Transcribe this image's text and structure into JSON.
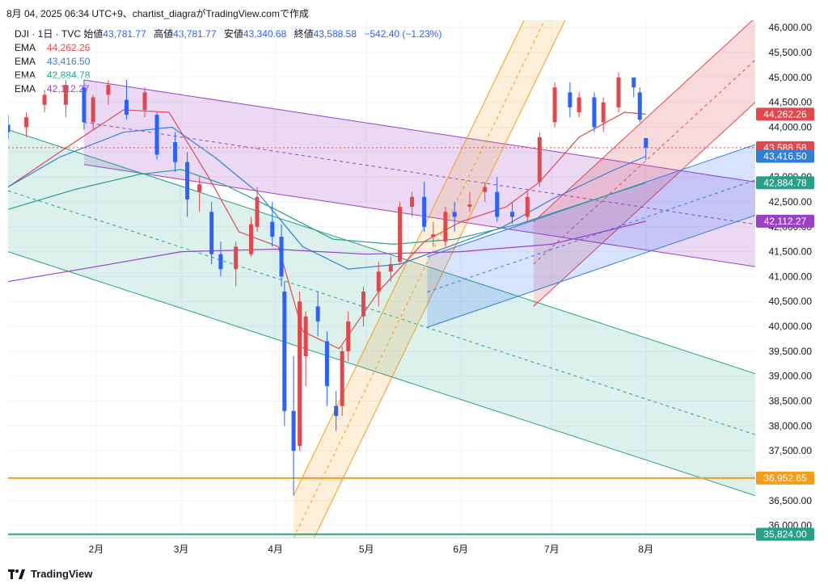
{
  "header": {
    "caption": "8月 04, 2025 06:34 UTC+9、chartist_diagraがTradingView.comで作成"
  },
  "legend": {
    "symbol": "DJI · 1日 · TVC",
    "open_label": "始値",
    "open": "43,781.77",
    "high_label": "高値",
    "high": "43,781.77",
    "low_label": "安値",
    "low": "43,340.68",
    "close_label": "終値",
    "close": "43,588.58",
    "change": "−542.40 (−1.23%)",
    "emas": [
      {
        "label": "EMA",
        "value": "44,262.26",
        "color": "#e0484e"
      },
      {
        "label": "EMA",
        "value": "43,416.50",
        "color": "#2f7fd8"
      },
      {
        "label": "EMA",
        "value": "42,884.78",
        "color": "#26a08a"
      },
      {
        "label": "EMA",
        "value": "42,112.27",
        "color": "#9c3fc7"
      }
    ]
  },
  "footer": {
    "brand": "TradingView"
  },
  "chart_data": {
    "type": "candlestick",
    "y_ticks": [
      "46,000.00",
      "45,500.00",
      "45,000.00",
      "44,500.00",
      "44,000.00",
      "43,500.00",
      "43,000.00",
      "42,500.00",
      "42,000.00",
      "41,500.00",
      "41,000.00",
      "40,500.00",
      "40,000.00",
      "39,500.00",
      "39,000.00",
      "38,500.00",
      "38,000.00",
      "37,500.00",
      "37,000.00",
      "36,500.00",
      "36,000.00"
    ],
    "y_tick_values": [
      46000,
      45500,
      45000,
      44500,
      44000,
      43500,
      43000,
      42500,
      42000,
      41500,
      41000,
      40500,
      40000,
      39500,
      39000,
      38500,
      38000,
      37500,
      37000,
      36500,
      36000
    ],
    "ylim": [
      35750,
      46150
    ],
    "x_ticks": [
      {
        "label": "2月",
        "date": "2025-02-01"
      },
      {
        "label": "3月",
        "date": "2025-03-01"
      },
      {
        "label": "4月",
        "date": "2025-04-01"
      },
      {
        "label": "5月",
        "date": "2025-05-01"
      },
      {
        "label": "6月",
        "date": "2025-06-01"
      },
      {
        "label": "7月",
        "date": "2025-07-01"
      },
      {
        "label": "8月",
        "date": "2025-08-01"
      }
    ],
    "xlim": [
      "2025-01-03",
      "2025-09-06"
    ],
    "price_labels": [
      {
        "text": "44,262.26",
        "value": 44262.26,
        "color": "#e0484e"
      },
      {
        "text": "43,588.58",
        "value": 43588.58,
        "color": "#e0484e"
      },
      {
        "text": "43,416.50",
        "value": 43416.5,
        "color": "#2f7fd8"
      },
      {
        "text": "42,884.78",
        "value": 42884.78,
        "color": "#26a08a"
      },
      {
        "text": "42,112.27",
        "value": 42112.27,
        "color": "#9c3fc7"
      },
      {
        "text": "36,952.65",
        "value": 36952.65,
        "color": "#f59c1a"
      },
      {
        "text": "35,824.00",
        "value": 35824,
        "color": "#26a08a"
      }
    ],
    "horizontal_lines": [
      {
        "value": 36952.65,
        "color": "#f59c1a"
      },
      {
        "value": 35824,
        "color": "#26a08a"
      },
      {
        "value": 43588.58,
        "color": "#e0484e",
        "dotted": true
      }
    ],
    "channels": [
      {
        "name": "purple",
        "start": {
          "date": "2025-01-28",
          "value": 44950
        },
        "end": {
          "date": "2025-09-06",
          "value": 42900
        },
        "width": 1700,
        "fill": "rgba(156,63,199,0.20)",
        "stroke": "#9c3fc7"
      },
      {
        "name": "teal",
        "start": {
          "date": "2025-01-03",
          "value": 43950
        },
        "end": {
          "date": "2025-09-06",
          "value": 39050
        },
        "width": 2450,
        "fill": "rgba(38,160,138,0.16)",
        "stroke": "#26a08a"
      },
      {
        "name": "orange",
        "start": {
          "date": "2025-04-07",
          "value": 36600
        },
        "end": {
          "date": "2025-08-05",
          "value": 51700
        },
        "width": 1700,
        "fill": "rgba(245,156,26,0.16)",
        "stroke": "#f59c1a"
      },
      {
        "name": "red",
        "start": {
          "date": "2025-06-25",
          "value": 42100
        },
        "end": {
          "date": "2025-09-06",
          "value": 46200
        },
        "width": 1700,
        "fill": "rgba(224,72,78,0.20)",
        "stroke": "#e0484e"
      },
      {
        "name": "blue",
        "start": {
          "date": "2025-05-21",
          "value": 41400
        },
        "end": {
          "date": "2025-09-06",
          "value": 43650
        },
        "width": 1420,
        "fill": "rgba(41,98,255,0.18)",
        "stroke": "#2f7fd8"
      }
    ],
    "ema_series": [
      {
        "color": "#e0484e",
        "points": [
          [
            "2025-01-03",
            42800
          ],
          [
            "2025-01-20",
            43500
          ],
          [
            "2025-02-10",
            44350
          ],
          [
            "2025-02-25",
            44300
          ],
          [
            "2025-03-10",
            43000
          ],
          [
            "2025-03-20",
            41900
          ],
          [
            "2025-04-02",
            41600
          ],
          [
            "2025-04-10",
            39900
          ],
          [
            "2025-04-22",
            39550
          ],
          [
            "2025-05-05",
            40700
          ],
          [
            "2025-05-20",
            41700
          ],
          [
            "2025-06-01",
            42100
          ],
          [
            "2025-06-16",
            42400
          ],
          [
            "2025-06-27",
            42900
          ],
          [
            "2025-07-10",
            43800
          ],
          [
            "2025-07-25",
            44300
          ],
          [
            "2025-08-01",
            44262
          ]
        ]
      },
      {
        "color": "#2f7fd8",
        "points": [
          [
            "2025-01-03",
            42800
          ],
          [
            "2025-01-20",
            43400
          ],
          [
            "2025-02-10",
            43900
          ],
          [
            "2025-02-26",
            44000
          ],
          [
            "2025-03-12",
            43400
          ],
          [
            "2025-03-26",
            42700
          ],
          [
            "2025-04-10",
            41600
          ],
          [
            "2025-04-25",
            41150
          ],
          [
            "2025-05-12",
            41250
          ],
          [
            "2025-05-28",
            41600
          ],
          [
            "2025-06-15",
            42000
          ],
          [
            "2025-07-01",
            42550
          ],
          [
            "2025-07-20",
            43100
          ],
          [
            "2025-08-01",
            43416
          ]
        ]
      },
      {
        "color": "#26a08a",
        "points": [
          [
            "2025-01-03",
            42350
          ],
          [
            "2025-01-25",
            42750
          ],
          [
            "2025-02-15",
            43050
          ],
          [
            "2025-03-01",
            43150
          ],
          [
            "2025-03-15",
            42850
          ],
          [
            "2025-04-01",
            42350
          ],
          [
            "2025-04-20",
            41750
          ],
          [
            "2025-05-10",
            41650
          ],
          [
            "2025-05-30",
            41750
          ],
          [
            "2025-06-20",
            42050
          ],
          [
            "2025-07-10",
            42450
          ],
          [
            "2025-08-01",
            42884
          ]
        ]
      },
      {
        "color": "#9c3fc7",
        "points": [
          [
            "2025-01-03",
            40900
          ],
          [
            "2025-02-01",
            41200
          ],
          [
            "2025-03-01",
            41500
          ],
          [
            "2025-04-01",
            41550
          ],
          [
            "2025-05-01",
            41450
          ],
          [
            "2025-06-01",
            41500
          ],
          [
            "2025-07-01",
            41650
          ],
          [
            "2025-08-01",
            42112
          ]
        ]
      }
    ],
    "candles": [
      {
        "date": "2025-01-03",
        "o": 44050,
        "h": 44250,
        "l": 43750,
        "c": 43900
      },
      {
        "date": "2025-01-09",
        "o": 44000,
        "h": 44300,
        "l": 43800,
        "c": 44200
      },
      {
        "date": "2025-01-15",
        "o": 44450,
        "h": 44750,
        "l": 44300,
        "c": 44650
      },
      {
        "date": "2025-01-22",
        "o": 44450,
        "h": 44950,
        "l": 44200,
        "c": 44850
      },
      {
        "date": "2025-01-28",
        "o": 44800,
        "h": 44950,
        "l": 43950,
        "c": 44100
      },
      {
        "date": "2025-01-31",
        "o": 44100,
        "h": 44650,
        "l": 43950,
        "c": 44600
      },
      {
        "date": "2025-02-05",
        "o": 44650,
        "h": 44950,
        "l": 44450,
        "c": 44850
      },
      {
        "date": "2025-02-11",
        "o": 44550,
        "h": 44950,
        "l": 44150,
        "c": 44250
      },
      {
        "date": "2025-02-17",
        "o": 44350,
        "h": 44800,
        "l": 44200,
        "c": 44700
      },
      {
        "date": "2025-02-21",
        "o": 44250,
        "h": 44300,
        "l": 43350,
        "c": 43450
      },
      {
        "date": "2025-02-27",
        "o": 43700,
        "h": 43900,
        "l": 43100,
        "c": 43300
      },
      {
        "date": "2025-03-03",
        "o": 43300,
        "h": 43500,
        "l": 42200,
        "c": 42550
      },
      {
        "date": "2025-03-07",
        "o": 42700,
        "h": 43000,
        "l": 42300,
        "c": 42850
      },
      {
        "date": "2025-03-11",
        "o": 42300,
        "h": 42500,
        "l": 41250,
        "c": 41450
      },
      {
        "date": "2025-03-14",
        "o": 41450,
        "h": 41700,
        "l": 41000,
        "c": 41150
      },
      {
        "date": "2025-03-19",
        "o": 41150,
        "h": 41700,
        "l": 40800,
        "c": 41600
      },
      {
        "date": "2025-03-24",
        "o": 41450,
        "h": 42200,
        "l": 41400,
        "c": 42050
      },
      {
        "date": "2025-03-26",
        "o": 42000,
        "h": 42800,
        "l": 41900,
        "c": 42600
      },
      {
        "date": "2025-03-31",
        "o": 42100,
        "h": 42500,
        "l": 41600,
        "c": 41800
      },
      {
        "date": "2025-04-03",
        "o": 41800,
        "h": 42050,
        "l": 40800,
        "c": 41000
      },
      {
        "date": "2025-04-04",
        "o": 40700,
        "h": 40900,
        "l": 38000,
        "c": 38300
      },
      {
        "date": "2025-04-07",
        "o": 38300,
        "h": 39400,
        "l": 36600,
        "c": 37500
      },
      {
        "date": "2025-04-09",
        "o": 37600,
        "h": 40700,
        "l": 37500,
        "c": 40500
      },
      {
        "date": "2025-04-11",
        "o": 39400,
        "h": 40300,
        "l": 38800,
        "c": 40200
      },
      {
        "date": "2025-04-15",
        "o": 40400,
        "h": 40700,
        "l": 39800,
        "c": 40100
      },
      {
        "date": "2025-04-18",
        "o": 39700,
        "h": 39900,
        "l": 38400,
        "c": 38800
      },
      {
        "date": "2025-04-21",
        "o": 38400,
        "h": 38700,
        "l": 37900,
        "c": 38200
      },
      {
        "date": "2025-04-23",
        "o": 38400,
        "h": 39600,
        "l": 38200,
        "c": 39500
      },
      {
        "date": "2025-04-25",
        "o": 39500,
        "h": 40300,
        "l": 39300,
        "c": 40100
      },
      {
        "date": "2025-04-30",
        "o": 40200,
        "h": 40800,
        "l": 40000,
        "c": 40700
      },
      {
        "date": "2025-05-05",
        "o": 40700,
        "h": 41300,
        "l": 40400,
        "c": 41100
      },
      {
        "date": "2025-05-09",
        "o": 41100,
        "h": 41400,
        "l": 40900,
        "c": 41250
      },
      {
        "date": "2025-05-12",
        "o": 41300,
        "h": 42500,
        "l": 41250,
        "c": 42400
      },
      {
        "date": "2025-05-16",
        "o": 42400,
        "h": 42700,
        "l": 42200,
        "c": 42600
      },
      {
        "date": "2025-05-20",
        "o": 42600,
        "h": 42900,
        "l": 41900,
        "c": 42000
      },
      {
        "date": "2025-05-23",
        "o": 41800,
        "h": 42100,
        "l": 41600,
        "c": 41850
      },
      {
        "date": "2025-05-27",
        "o": 41700,
        "h": 42400,
        "l": 41600,
        "c": 42300
      },
      {
        "date": "2025-05-30",
        "o": 42300,
        "h": 42500,
        "l": 41900,
        "c": 42200
      },
      {
        "date": "2025-06-04",
        "o": 42400,
        "h": 42700,
        "l": 42300,
        "c": 42450
      },
      {
        "date": "2025-06-09",
        "o": 42700,
        "h": 42900,
        "l": 42500,
        "c": 42800
      },
      {
        "date": "2025-06-13",
        "o": 42700,
        "h": 43000,
        "l": 42100,
        "c": 42200
      },
      {
        "date": "2025-06-18",
        "o": 42300,
        "h": 42500,
        "l": 42050,
        "c": 42200
      },
      {
        "date": "2025-06-23",
        "o": 42200,
        "h": 42700,
        "l": 42100,
        "c": 42600
      },
      {
        "date": "2025-06-27",
        "o": 42900,
        "h": 43900,
        "l": 42800,
        "c": 43800
      },
      {
        "date": "2025-07-02",
        "o": 44100,
        "h": 44900,
        "l": 44000,
        "c": 44800
      },
      {
        "date": "2025-07-07",
        "o": 44700,
        "h": 44900,
        "l": 44200,
        "c": 44400
      },
      {
        "date": "2025-07-10",
        "o": 44300,
        "h": 44700,
        "l": 44200,
        "c": 44600
      },
      {
        "date": "2025-07-15",
        "o": 44600,
        "h": 44700,
        "l": 43900,
        "c": 44000
      },
      {
        "date": "2025-07-18",
        "o": 44100,
        "h": 44600,
        "l": 43900,
        "c": 44500
      },
      {
        "date": "2025-07-23",
        "o": 44400,
        "h": 45100,
        "l": 44300,
        "c": 45000
      },
      {
        "date": "2025-07-28",
        "o": 45000,
        "h": 45000,
        "l": 44600,
        "c": 44800
      },
      {
        "date": "2025-07-30",
        "o": 44700,
        "h": 44800,
        "l": 44100,
        "c": 44150
      },
      {
        "date": "2025-08-01",
        "o": 43781.77,
        "h": 43781.77,
        "l": 43340.68,
        "c": 43588.58
      }
    ]
  }
}
